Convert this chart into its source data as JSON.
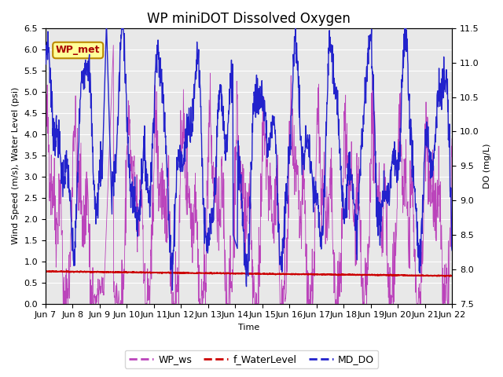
{
  "title": "WP miniDOT Dissolved Oxygen",
  "xlabel": "Time",
  "ylabel_left": "Wind Speed (m/s), Water Level (psi)",
  "ylabel_right": "DO (mg/L)",
  "ylim_left": [
    0.0,
    6.5
  ],
  "ylim_right": [
    7.5,
    11.5
  ],
  "xtick_labels": [
    "Jun 7",
    "Jun 8",
    "Jun 9",
    "Jun 10",
    "Jun 11",
    "Jun 12",
    "Jun 13",
    "Jun 14",
    "Jun 15",
    "Jun 16",
    "Jun 17",
    "Jun 18",
    "Jun 19",
    "Jun 20",
    "Jun 21",
    "Jun 22"
  ],
  "color_ws": "#BB44BB",
  "color_wl": "#CC0000",
  "color_do": "#2222CC",
  "legend_labels": [
    "WP_ws",
    "f_WaterLevel",
    "MD_DO"
  ],
  "annotation_text": "WP_met",
  "annotation_fg": "#AA0000",
  "annotation_bg": "#FFFF99",
  "annotation_border": "#BB8800",
  "bg_color": "#E8E8E8",
  "grid_color": "#FFFFFF",
  "title_fontsize": 12,
  "label_fontsize": 8,
  "tick_fontsize": 8,
  "legend_fontsize": 9
}
